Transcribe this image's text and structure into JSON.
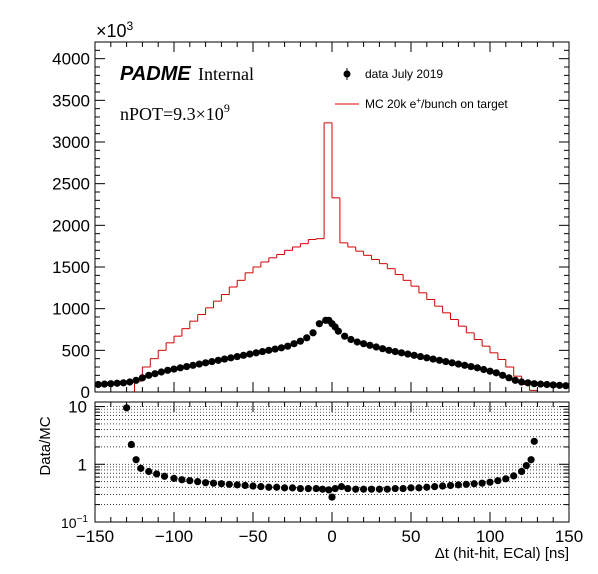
{
  "chart_data": [
    {
      "type": "histogram",
      "panel": "main",
      "brand_name": "PADME",
      "brand_tag": "Internal",
      "npot_prefix": "nPOT=9.3×10",
      "npot_exp": "9",
      "y_multiplier_base": "×10",
      "y_multiplier_exp": "3",
      "xlim": [
        -150,
        150
      ],
      "ylim": [
        0,
        4200
      ],
      "y_ticks": [
        0,
        500,
        1000,
        1500,
        2000,
        2500,
        3000,
        3500,
        4000
      ],
      "y_tick_labels": [
        "0",
        "500",
        "1000",
        "1500",
        "2000",
        "2500",
        "3000",
        "3500",
        "4000"
      ],
      "legend": [
        {
          "name": "data July 2019",
          "style": "marker"
        },
        {
          "name_pre": "MC 20k e",
          "name_sup": "+",
          "name_post": "/bunch on target",
          "style": "line",
          "color": "#d40000"
        }
      ],
      "series": [
        {
          "name": "MC",
          "color": "#d40000",
          "bin_width": 5,
          "x": [
            -150,
            -145,
            -140,
            -135,
            -130,
            -125,
            -120,
            -115,
            -110,
            -105,
            -100,
            -95,
            -90,
            -85,
            -80,
            -75,
            -70,
            -65,
            -60,
            -55,
            -50,
            -45,
            -40,
            -35,
            -30,
            -25,
            -20,
            -15,
            -10,
            -5,
            0,
            5,
            10,
            15,
            20,
            25,
            30,
            35,
            40,
            45,
            50,
            55,
            60,
            65,
            70,
            75,
            80,
            85,
            90,
            95,
            100,
            105,
            110,
            115,
            120,
            125,
            130,
            135,
            140,
            145
          ],
          "y": [
            0,
            0,
            0,
            0,
            0,
            130,
            300,
            400,
            500,
            590,
            670,
            760,
            850,
            930,
            1010,
            1090,
            1170,
            1260,
            1340,
            1430,
            1500,
            1560,
            1610,
            1650,
            1700,
            1740,
            1780,
            1830,
            1840,
            3230,
            2330,
            1790,
            1740,
            1690,
            1640,
            1590,
            1540,
            1480,
            1410,
            1340,
            1270,
            1190,
            1110,
            1030,
            950,
            870,
            790,
            710,
            630,
            550,
            470,
            390,
            300,
            190,
            90,
            20,
            0,
            0,
            0,
            0
          ]
        },
        {
          "name": "data July 2019",
          "color": "#000000",
          "x": [
            -148,
            -144,
            -140,
            -136,
            -132,
            -128,
            -124,
            -120,
            -116,
            -112,
            -108,
            -104,
            -100,
            -96,
            -92,
            -88,
            -84,
            -80,
            -76,
            -72,
            -68,
            -64,
            -60,
            -56,
            -52,
            -48,
            -44,
            -40,
            -36,
            -32,
            -28,
            -24,
            -20,
            -16,
            -12,
            -8,
            -4,
            -2,
            0,
            2,
            4,
            8,
            12,
            16,
            20,
            24,
            28,
            32,
            36,
            40,
            44,
            48,
            52,
            56,
            60,
            64,
            68,
            72,
            76,
            80,
            84,
            88,
            92,
            96,
            100,
            104,
            108,
            112,
            116,
            120,
            124,
            128,
            132,
            136,
            140,
            144,
            148
          ],
          "y": [
            90,
            95,
            100,
            105,
            110,
            120,
            140,
            170,
            200,
            220,
            240,
            260,
            275,
            290,
            305,
            320,
            335,
            350,
            365,
            380,
            395,
            410,
            425,
            440,
            455,
            470,
            485,
            500,
            515,
            530,
            550,
            580,
            610,
            650,
            710,
            820,
            860,
            860,
            820,
            780,
            730,
            670,
            630,
            600,
            580,
            560,
            540,
            520,
            500,
            485,
            470,
            455,
            440,
            425,
            410,
            395,
            380,
            365,
            350,
            335,
            320,
            305,
            290,
            270,
            250,
            230,
            200,
            170,
            140,
            120,
            110,
            100,
            95,
            90,
            85,
            80,
            75
          ]
        }
      ]
    },
    {
      "type": "scatter",
      "panel": "ratio",
      "ylabel": "Data/MC",
      "xlabel": "Δt (hit-hit, ECal) [ns]",
      "xlim": [
        -150,
        150
      ],
      "ylim": [
        0.1,
        12
      ],
      "y_scale": "log",
      "x_ticks": [
        -150,
        -100,
        -50,
        0,
        50,
        100,
        150
      ],
      "x_tick_labels": [
        "−150",
        "−100",
        "−50",
        "0",
        "50",
        "100",
        "150"
      ],
      "y_ticks_major": [
        1,
        10
      ],
      "y_tick_labels": [
        "1",
        "10"
      ],
      "y_min_label_base": "10",
      "y_min_label_exp": "−1",
      "grid": true,
      "series": [
        {
          "name": "Data/MC",
          "color": "#000000",
          "x": [
            -130,
            -127,
            -124,
            -121,
            -116,
            -111,
            -106,
            -100,
            -95,
            -90,
            -85,
            -80,
            -75,
            -70,
            -65,
            -60,
            -55,
            -50,
            -45,
            -40,
            -35,
            -30,
            -25,
            -20,
            -15,
            -10,
            -6,
            -2,
            0,
            2,
            6,
            10,
            15,
            20,
            25,
            30,
            35,
            40,
            45,
            50,
            55,
            60,
            65,
            70,
            75,
            80,
            85,
            90,
            95,
            100,
            105,
            110,
            115,
            120,
            123,
            126,
            128
          ],
          "y": [
            9.5,
            2.2,
            1.2,
            0.85,
            0.75,
            0.68,
            0.62,
            0.57,
            0.54,
            0.52,
            0.5,
            0.48,
            0.47,
            0.46,
            0.45,
            0.44,
            0.43,
            0.42,
            0.41,
            0.4,
            0.4,
            0.39,
            0.39,
            0.38,
            0.38,
            0.38,
            0.37,
            0.36,
            0.27,
            0.38,
            0.41,
            0.38,
            0.37,
            0.37,
            0.37,
            0.37,
            0.37,
            0.38,
            0.38,
            0.39,
            0.39,
            0.4,
            0.41,
            0.42,
            0.43,
            0.44,
            0.45,
            0.46,
            0.47,
            0.49,
            0.52,
            0.56,
            0.63,
            0.75,
            0.95,
            1.2,
            2.5
          ]
        }
      ]
    }
  ]
}
